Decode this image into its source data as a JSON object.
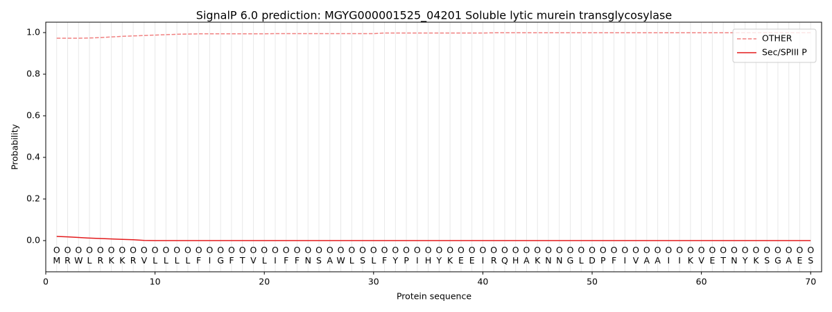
{
  "chart_data": {
    "type": "line",
    "title": "SignalP 6.0 prediction: MGYG000001525_04201 Soluble lytic murein transglycosylase",
    "x_label": "Protein sequence",
    "y_label": "Probability",
    "x": [
      1,
      2,
      3,
      4,
      5,
      6,
      7,
      8,
      9,
      10,
      11,
      12,
      13,
      14,
      15,
      16,
      17,
      18,
      19,
      20,
      21,
      22,
      23,
      24,
      25,
      26,
      27,
      28,
      29,
      30,
      31,
      32,
      33,
      34,
      35,
      36,
      37,
      38,
      39,
      40,
      41,
      42,
      43,
      44,
      45,
      46,
      47,
      48,
      49,
      50,
      51,
      52,
      53,
      54,
      55,
      56,
      57,
      58,
      59,
      60,
      61,
      62,
      63,
      64,
      65,
      66,
      67,
      68,
      69,
      70
    ],
    "residues": [
      "M",
      "R",
      "W",
      "L",
      "R",
      "K",
      "K",
      "R",
      "V",
      "L",
      "L",
      "L",
      "L",
      "F",
      "I",
      "G",
      "F",
      "T",
      "V",
      "L",
      "I",
      "F",
      "F",
      "N",
      "S",
      "A",
      "W",
      "L",
      "S",
      "L",
      "F",
      "Y",
      "P",
      "I",
      "H",
      "Y",
      "K",
      "E",
      "E",
      "I",
      "R",
      "Q",
      "H",
      "A",
      "K",
      "N",
      "N",
      "G",
      "L",
      "D",
      "P",
      "F",
      "I",
      "V",
      "A",
      "A",
      "I",
      "I",
      "K",
      "V",
      "E",
      "T",
      "N",
      "Y",
      "K",
      "S",
      "G",
      "A",
      "E",
      "S"
    ],
    "region_labels": [
      "O",
      "O",
      "O",
      "O",
      "O",
      "O",
      "O",
      "O",
      "O",
      "O",
      "O",
      "O",
      "O",
      "O",
      "O",
      "O",
      "O",
      "O",
      "O",
      "O",
      "O",
      "O",
      "O",
      "O",
      "O",
      "O",
      "O",
      "O",
      "O",
      "O",
      "O",
      "O",
      "O",
      "O",
      "O",
      "O",
      "O",
      "O",
      "O",
      "O",
      "O",
      "O",
      "O",
      "O",
      "O",
      "O",
      "O",
      "O",
      "O",
      "O",
      "O",
      "O",
      "O",
      "O",
      "O",
      "O",
      "O",
      "O",
      "O",
      "O",
      "O",
      "O",
      "O",
      "O",
      "O",
      "O",
      "O",
      "O",
      "O",
      "O"
    ],
    "series": [
      {
        "name": "OTHER",
        "color": "#f08080",
        "dashed": true,
        "values": [
          0.973,
          0.973,
          0.973,
          0.974,
          0.976,
          0.979,
          0.982,
          0.984,
          0.986,
          0.988,
          0.99,
          0.992,
          0.993,
          0.994,
          0.994,
          0.994,
          0.994,
          0.994,
          0.994,
          0.994,
          0.995,
          0.995,
          0.995,
          0.995,
          0.995,
          0.995,
          0.995,
          0.995,
          0.995,
          0.995,
          0.998,
          0.998,
          0.998,
          0.998,
          0.998,
          0.998,
          0.998,
          0.998,
          0.998,
          0.998,
          0.999,
          0.999,
          0.999,
          0.999,
          0.999,
          0.999,
          0.999,
          0.999,
          0.999,
          0.999,
          0.999,
          0.999,
          0.999,
          0.999,
          0.999,
          0.999,
          0.999,
          0.999,
          0.999,
          0.999,
          0.999,
          0.999,
          0.999,
          0.999,
          0.999,
          0.999,
          0.999,
          0.999,
          0.999,
          0.999
        ]
      },
      {
        "name": "Sec/SPIII P",
        "color": "#e31a1c",
        "dashed": false,
        "values": [
          0.02,
          0.018,
          0.015,
          0.012,
          0.01,
          0.008,
          0.006,
          0.004,
          0.001,
          0,
          0,
          0,
          0,
          0,
          0,
          0,
          0,
          0,
          0,
          0,
          0,
          0,
          0,
          0,
          0,
          0,
          0,
          0,
          0,
          0,
          0,
          0,
          0,
          0,
          0,
          0,
          0,
          0,
          0,
          0,
          0,
          0,
          0,
          0,
          0,
          0,
          0,
          0,
          0,
          0,
          0,
          0,
          0,
          0,
          0,
          0,
          0,
          0,
          0,
          0,
          0,
          0,
          0,
          0,
          0,
          0,
          0,
          0,
          0,
          0
        ]
      }
    ],
    "xlim": [
      0,
      71
    ],
    "ylim": [
      -0.15,
      1.05
    ],
    "xticks": [
      0,
      10,
      20,
      30,
      40,
      50,
      60,
      70
    ],
    "yticks": [
      {
        "value": 0,
        "label": "0.0"
      },
      {
        "value": 0.2,
        "label": "0.2"
      },
      {
        "value": 0.4,
        "label": "0.4"
      },
      {
        "value": 0.6,
        "label": "0.6"
      },
      {
        "value": 0.8,
        "label": "0.8"
      },
      {
        "value": 1,
        "label": "1.0"
      }
    ],
    "legend": "upper right"
  }
}
